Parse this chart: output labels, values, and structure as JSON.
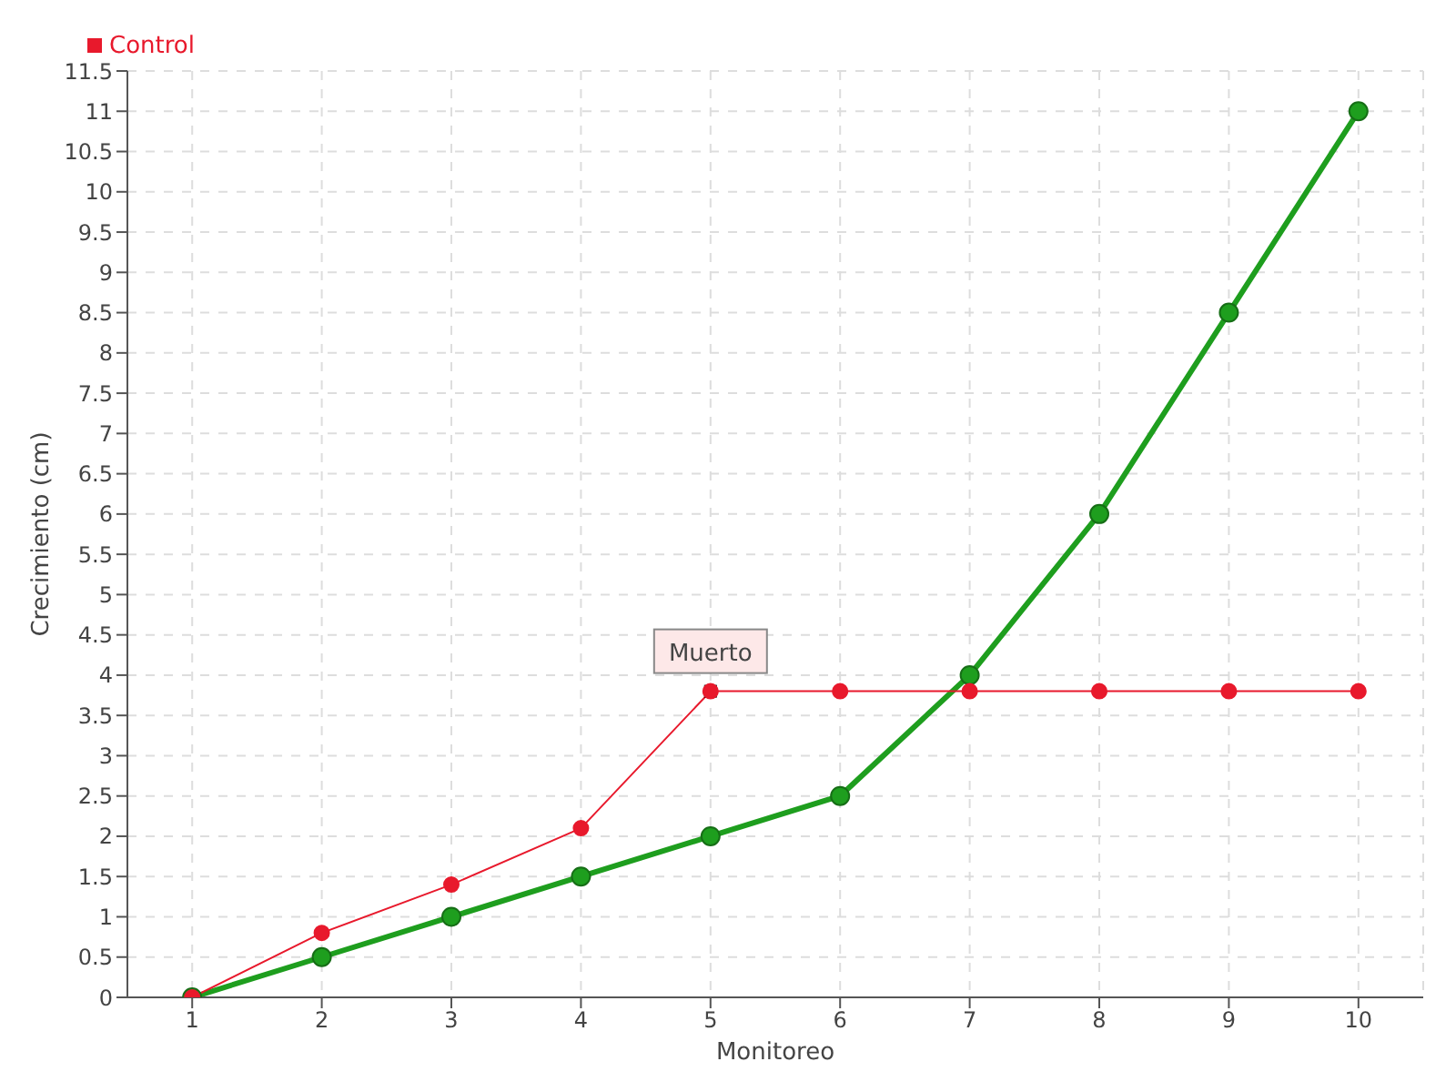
{
  "chart_data": {
    "type": "line",
    "xlabel": "Monitoreo",
    "ylabel": "Crecimiento (cm)",
    "x": [
      1,
      2,
      3,
      4,
      5,
      6,
      7,
      8,
      9,
      10
    ],
    "series": [
      {
        "color": "#1e9e1e",
        "values": [
          0,
          0.5,
          1,
          1.5,
          2,
          2.5,
          4,
          6,
          8.5,
          11
        ]
      },
      {
        "name": "Control",
        "color": "#e8192c",
        "values": [
          0,
          0.8,
          1.4,
          2.1,
          3.8,
          3.8,
          3.8,
          3.8,
          3.8,
          3.8
        ]
      }
    ],
    "xlim": [
      0.5,
      10.5
    ],
    "xticks": [
      1,
      2,
      3,
      4,
      5,
      6,
      7,
      8,
      9,
      10
    ],
    "ylim": [
      0,
      11.5
    ],
    "yticks": [
      0,
      0.5,
      1,
      1.5,
      2,
      2.5,
      3,
      3.5,
      4,
      4.5,
      5,
      5.5,
      6,
      6.5,
      7,
      7.5,
      8,
      8.5,
      9,
      9.5,
      10,
      10.5,
      11,
      11.5
    ],
    "grid": true,
    "legend": "top left",
    "marker": "circle",
    "line_style": "solid",
    "annotations": [
      {
        "text": "Muerto",
        "x": 5,
        "y": 3.8
      }
    ]
  }
}
